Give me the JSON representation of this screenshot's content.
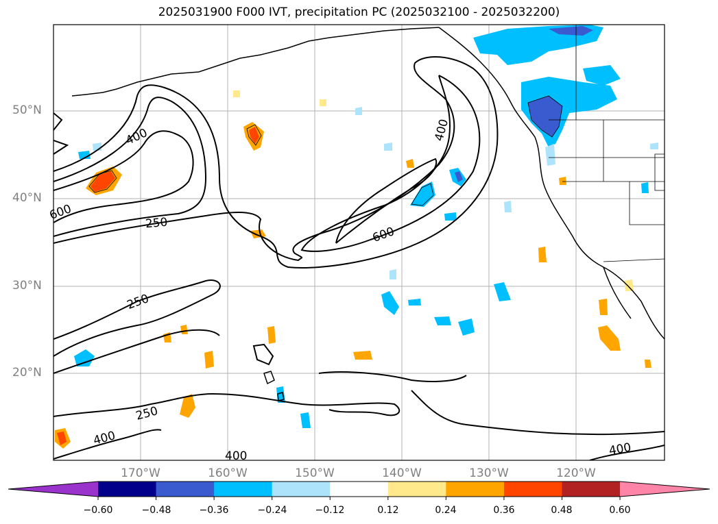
{
  "title": "2025031900 F000 IVT, precipitation PC (2025032100 - 2025032200)",
  "lat_labels": [
    "50°N",
    "40°N",
    "30°N",
    "20°N"
  ],
  "lon_labels": [
    "170°W",
    "160°W",
    "150°W",
    "140°W",
    "130°W",
    "120°W"
  ],
  "contour_labels": [
    "400",
    "600",
    "250",
    "400",
    "600",
    "250",
    "250",
    "400",
    "400",
    "400"
  ],
  "colorbar": {
    "ticks": [
      "−0.60",
      "−0.48",
      "−0.36",
      "−0.24",
      "−0.12",
      "0.12",
      "0.24",
      "0.36",
      "0.48",
      "0.60"
    ],
    "colors": [
      "#9933cc",
      "#00008b",
      "#3a5bd0",
      "#00bfff",
      "#aee4fb",
      "#ffffff",
      "#ffe98a",
      "#ffa500",
      "#ff4500",
      "#b22222",
      "#ff85a8"
    ]
  },
  "colors": {
    "contour": "#000000",
    "grid": "#b0b0b0",
    "axis_label": "#808080"
  }
}
